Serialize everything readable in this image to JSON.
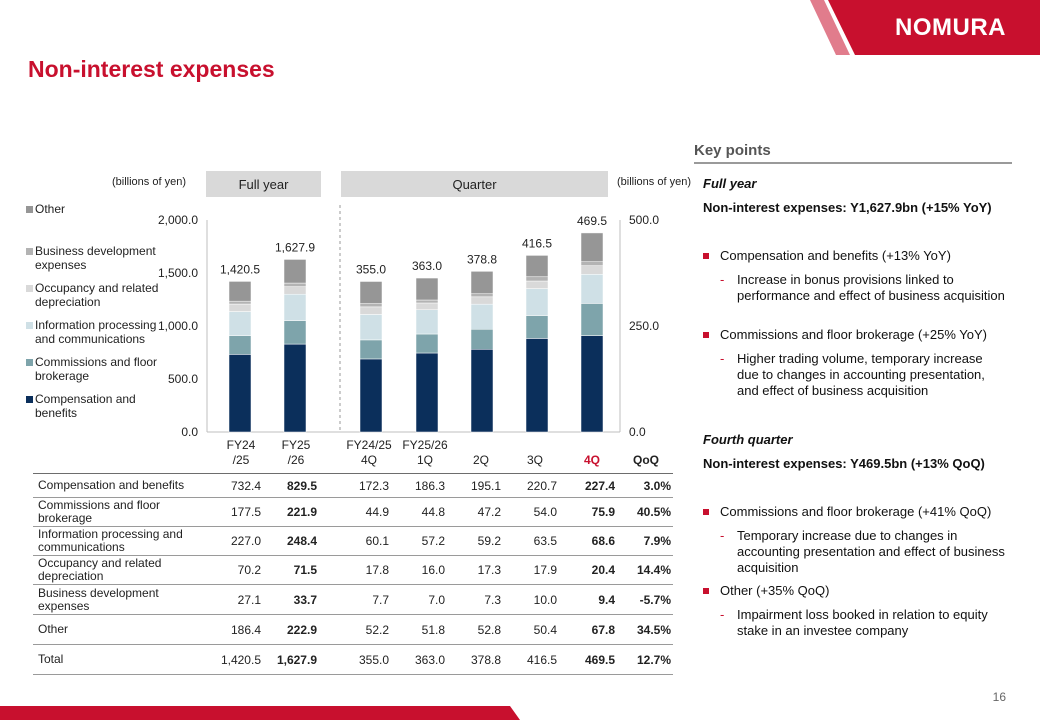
{
  "brand": {
    "logo_text": "NOMURA",
    "red": "#c8102e"
  },
  "page": {
    "title": "Non-interest expenses",
    "page_number": "16"
  },
  "chart_data": {
    "type": "bar",
    "stacked": true,
    "units_left": "(billions of yen)",
    "units_right": "(billions of yen)",
    "panels": [
      {
        "header": "Full year",
        "categories": [
          "FY24\n/25",
          "FY25\n/26"
        ],
        "axis": "left",
        "ylim": [
          0,
          2000
        ],
        "ticks": [
          "0.0",
          "500.0",
          "1,000.0",
          "1,500.0",
          "2,000.0"
        ],
        "totals": [
          "1,420.5",
          "1,627.9"
        ]
      },
      {
        "header": "Quarter",
        "categories": [
          "FY24/25\n4Q",
          "FY25/26\n1Q",
          "2Q",
          "3Q",
          "4Q"
        ],
        "axis": "right",
        "ylim": [
          0,
          500
        ],
        "ticks": [
          "0.0",
          "250.0",
          "500.0"
        ],
        "totals": [
          "355.0",
          "363.0",
          "378.8",
          "416.5",
          "469.5"
        ]
      }
    ],
    "series": [
      {
        "name": "Compensation and benefits",
        "color": "#0b2f5b",
        "values": [
          732.4,
          829.5,
          172.3,
          186.3,
          195.1,
          220.7,
          227.4
        ]
      },
      {
        "name": "Commissions and floor brokerage",
        "color": "#7ea4ab",
        "values": [
          177.5,
          221.9,
          44.9,
          44.8,
          47.2,
          54.0,
          75.9
        ]
      },
      {
        "name": "Information processing and communications",
        "color": "#cfe0e6",
        "values": [
          227.0,
          248.4,
          60.1,
          57.2,
          59.2,
          63.5,
          68.6
        ]
      },
      {
        "name": "Occupancy and related depreciation",
        "color": "#d9d9d9",
        "values": [
          70.2,
          71.5,
          17.8,
          16.0,
          17.3,
          17.9,
          20.4
        ]
      },
      {
        "name": "Business development expenses",
        "color": "#b3b3b3",
        "values": [
          27.1,
          33.7,
          7.7,
          7.0,
          7.3,
          10.0,
          9.4
        ]
      },
      {
        "name": "Other",
        "color": "#969696",
        "values": [
          186.4,
          222.9,
          52.2,
          51.8,
          52.8,
          50.4,
          67.8
        ]
      }
    ],
    "legend_placement": "left"
  },
  "legend": [
    {
      "label": "Other",
      "color": "#969696"
    },
    {
      "label": "Business development expenses",
      "color": "#b3b3b3"
    },
    {
      "label": "Occupancy and related depreciation",
      "color": "#d9d9d9"
    },
    {
      "label": "Information processing and communications",
      "color": "#cfe0e6"
    },
    {
      "label": "Commissions and floor brokerage",
      "color": "#7ea4ab"
    },
    {
      "label": "Compensation and benefits",
      "color": "#0b2f5b"
    }
  ],
  "table": {
    "columns": [
      "FY24\n/25",
      "FY25\n/26",
      "FY24/25\n4Q",
      "FY25/26\n1Q",
      "2Q",
      "3Q",
      "4Q",
      "QoQ"
    ],
    "rows": [
      {
        "label": "Compensation and benefits",
        "values": [
          "732.4",
          "829.5",
          "172.3",
          "186.3",
          "195.1",
          "220.7",
          "227.4",
          "3.0%"
        ]
      },
      {
        "label": "Commissions and floor brokerage",
        "values": [
          "177.5",
          "221.9",
          "44.9",
          "44.8",
          "47.2",
          "54.0",
          "75.9",
          "40.5%"
        ]
      },
      {
        "label": "Information processing and communications",
        "values": [
          "227.0",
          "248.4",
          "60.1",
          "57.2",
          "59.2",
          "63.5",
          "68.6",
          "7.9%"
        ]
      },
      {
        "label": "Occupancy and related depreciation",
        "values": [
          "70.2",
          "71.5",
          "17.8",
          "16.0",
          "17.3",
          "17.9",
          "20.4",
          "14.4%"
        ]
      },
      {
        "label": "Business development expenses",
        "values": [
          "27.1",
          "33.7",
          "7.7",
          "7.0",
          "7.3",
          "10.0",
          "9.4",
          "-5.7%"
        ]
      },
      {
        "label": "Other",
        "values": [
          "186.4",
          "222.9",
          "52.2",
          "51.8",
          "52.8",
          "50.4",
          "67.8",
          "34.5%"
        ]
      },
      {
        "label": "Total",
        "values": [
          "1,420.5",
          "1,627.9",
          "355.0",
          "363.0",
          "378.8",
          "416.5",
          "469.5",
          "12.7%"
        ]
      }
    ]
  },
  "key_points": {
    "title": "Key points",
    "full_year_heading": "Full year",
    "full_year_summary": "Non-interest expenses: Y1,627.9bn (+15% YoY)",
    "full_year_bullets": [
      {
        "text": "Compensation and benefits (+13% YoY)",
        "sub": "Increase in bonus provisions linked to performance and effect of business acquisition"
      },
      {
        "text": "Commissions and floor brokerage (+25% YoY)",
        "sub": "Higher trading volume, temporary increase due to changes in accounting presentation, and effect of business acquisition"
      }
    ],
    "quarter_heading": "Fourth quarter",
    "quarter_summary": "Non-interest expenses: Y469.5bn (+13% QoQ)",
    "quarter_bullets": [
      {
        "text": "Commissions and floor brokerage (+41% QoQ)",
        "sub": "Temporary increase due to changes in accounting presentation and effect of business acquisition"
      },
      {
        "text": "Other (+35% QoQ)",
        "sub": "Impairment loss booked in relation to equity stake in an investee company"
      }
    ]
  }
}
